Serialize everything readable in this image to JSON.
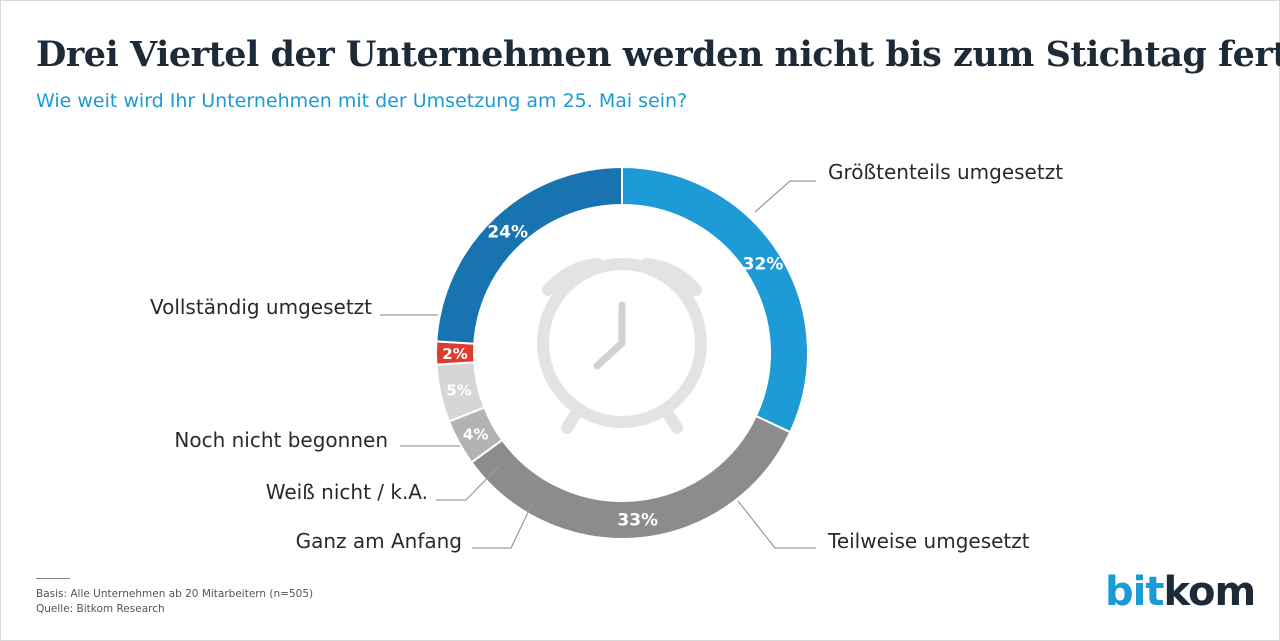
{
  "title": "Drei Viertel der Unternehmen werden nicht bis zum Stichtag fertig",
  "subtitle": "Wie weit wird Ihr Unternehmen mit der Umsetzung am 25. Mai sein?",
  "chart_data": {
    "type": "pie",
    "variant": "donut",
    "title": "Drei Viertel der Unternehmen werden nicht bis zum Stichtag fertig",
    "subtitle": "Wie weit wird Ihr Unternehmen mit der Umsetzung am 25. Mai sein?",
    "legend": "none",
    "slices": [
      {
        "label": "Größtenteils umgesetzt",
        "value": 32,
        "value_label": "32%",
        "color": "#1e9bd7",
        "label_color": "#ffffff"
      },
      {
        "label": "Teilweise umgesetzt",
        "value": 33,
        "value_label": "33%",
        "color": "#8c8c8c",
        "label_color": "#ffffff"
      },
      {
        "label": "Ganz am Anfang",
        "value": 4,
        "value_label": "4%",
        "color": "#b3b3b3",
        "label_color": "#ffffff"
      },
      {
        "label": "Weiß nicht / k.A.",
        "value": 5,
        "value_label": "5%",
        "color": "#d6d6d6",
        "label_color": "#ffffff"
      },
      {
        "label": "Noch nicht begonnen",
        "value": 2,
        "value_label": "2%",
        "color": "#e03a2f",
        "label_color": "#ffffff"
      },
      {
        "label": "Vollständig umgesetzt",
        "value": 24,
        "value_label": "24%",
        "color": "#1874b0",
        "label_color": "#ffffff"
      }
    ]
  },
  "footer": {
    "basis": "Basis: Alle Unternehmen ab 20 Mitarbeitern (n=505)",
    "source": "Quelle: Bitkom Research"
  },
  "logo": {
    "part1": "bit",
    "part2": "kom"
  },
  "center_icon": "alarm-clock-icon"
}
